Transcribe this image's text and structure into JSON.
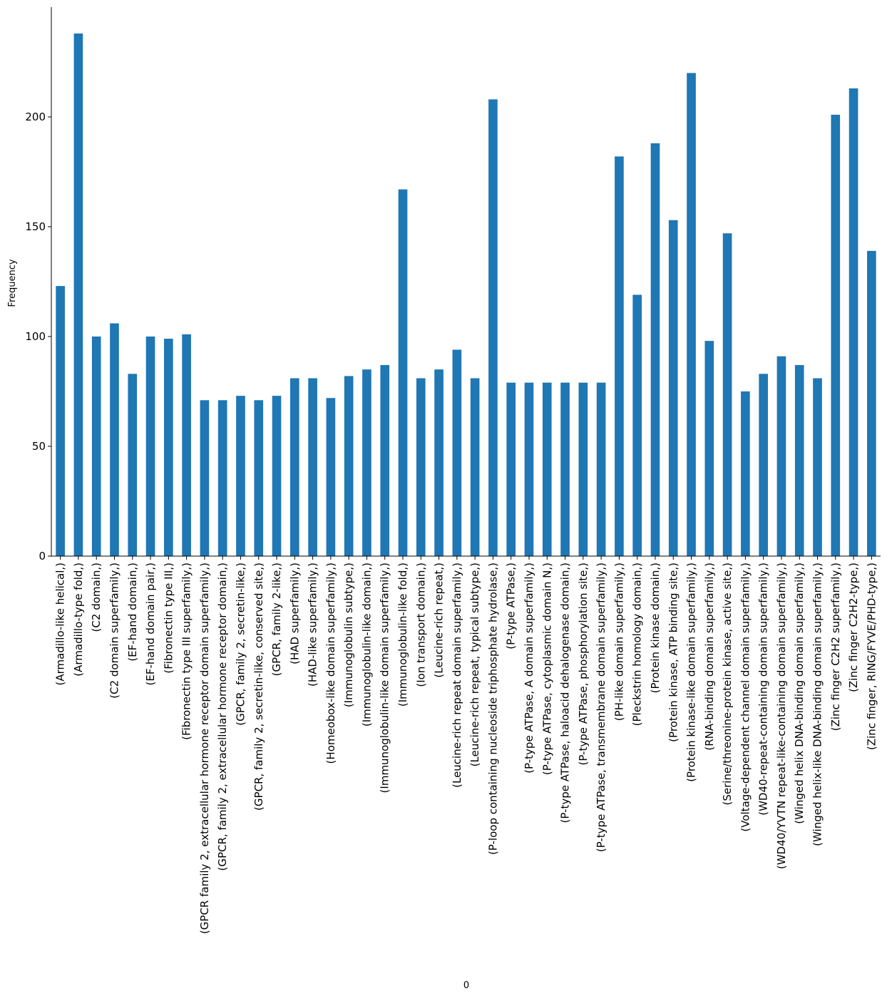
{
  "chart_data": {
    "type": "bar",
    "title": "",
    "xlabel": "0",
    "ylabel": "Frequency",
    "ylim": [
      0,
      250
    ],
    "yticks": [
      0,
      50,
      100,
      150,
      200
    ],
    "grid": false,
    "bar_color": "#1f77b4",
    "categories": [
      "(Armadillo-like helical,)",
      "(Armadillo-type fold,)",
      "(C2 domain,)",
      "(C2 domain superfamily,)",
      "(EF-hand domain,)",
      "(EF-hand domain pair,)",
      "(Fibronectin type III,)",
      "(Fibronectin type III superfamily,)",
      "(GPCR family 2, extracellular hormone receptor domain superfamily,)",
      "(GPCR, family 2, extracellular hormone receptor domain,)",
      "(GPCR, family 2, secretin-like,)",
      "(GPCR, family 2, secretin-like, conserved site,)",
      "(GPCR, family 2-like,)",
      "(HAD superfamily,)",
      "(HAD-like superfamily,)",
      "(Homeobox-like domain superfamily,)",
      "(Immunoglobulin subtype,)",
      "(Immunoglobulin-like domain,)",
      "(Immunoglobulin-like domain superfamily,)",
      "(Immunoglobulin-like fold,)",
      "(Ion transport domain,)",
      "(Leucine-rich repeat,)",
      "(Leucine-rich repeat domain superfamily,)",
      "(Leucine-rich repeat, typical subtype,)",
      "(P-loop containing nucleoside triphosphate hydrolase,)",
      "(P-type ATPase,)",
      "(P-type ATPase, A domain superfamily,)",
      "(P-type ATPase, cytoplasmic domain N,)",
      "(P-type ATPase, haloacid dehalogenase domain,)",
      "(P-type ATPase, phosphorylation site,)",
      "(P-type ATPase, transmembrane domain superfamily,)",
      "(PH-like domain superfamily,)",
      "(Pleckstrin homology domain,)",
      "(Protein kinase domain,)",
      "(Protein kinase, ATP binding site,)",
      "(Protein kinase-like domain superfamily,)",
      "(RNA-binding domain superfamily,)",
      "(Serine/threonine-protein kinase, active site,)",
      "(Voltage-dependent channel domain superfamily,)",
      "(WD40-repeat-containing domain superfamily,)",
      "(WD40/YVTN repeat-like-containing domain superfamily,)",
      "(Winged helix DNA-binding domain superfamily,)",
      "(Winged helix-like DNA-binding domain superfamily,)",
      "(Zinc finger C2H2 superfamily,)",
      "(Zinc finger C2H2-type,)",
      "(Zinc finger, RING/FYVE/PHD-type,)"
    ],
    "values": [
      123,
      238,
      100,
      106,
      83,
      100,
      99,
      101,
      71,
      71,
      73,
      71,
      73,
      81,
      81,
      72,
      82,
      85,
      87,
      167,
      81,
      85,
      94,
      81,
      208,
      79,
      79,
      79,
      79,
      79,
      79,
      182,
      119,
      188,
      153,
      220,
      98,
      147,
      75,
      83,
      91,
      87,
      81,
      201,
      213,
      139
    ]
  }
}
